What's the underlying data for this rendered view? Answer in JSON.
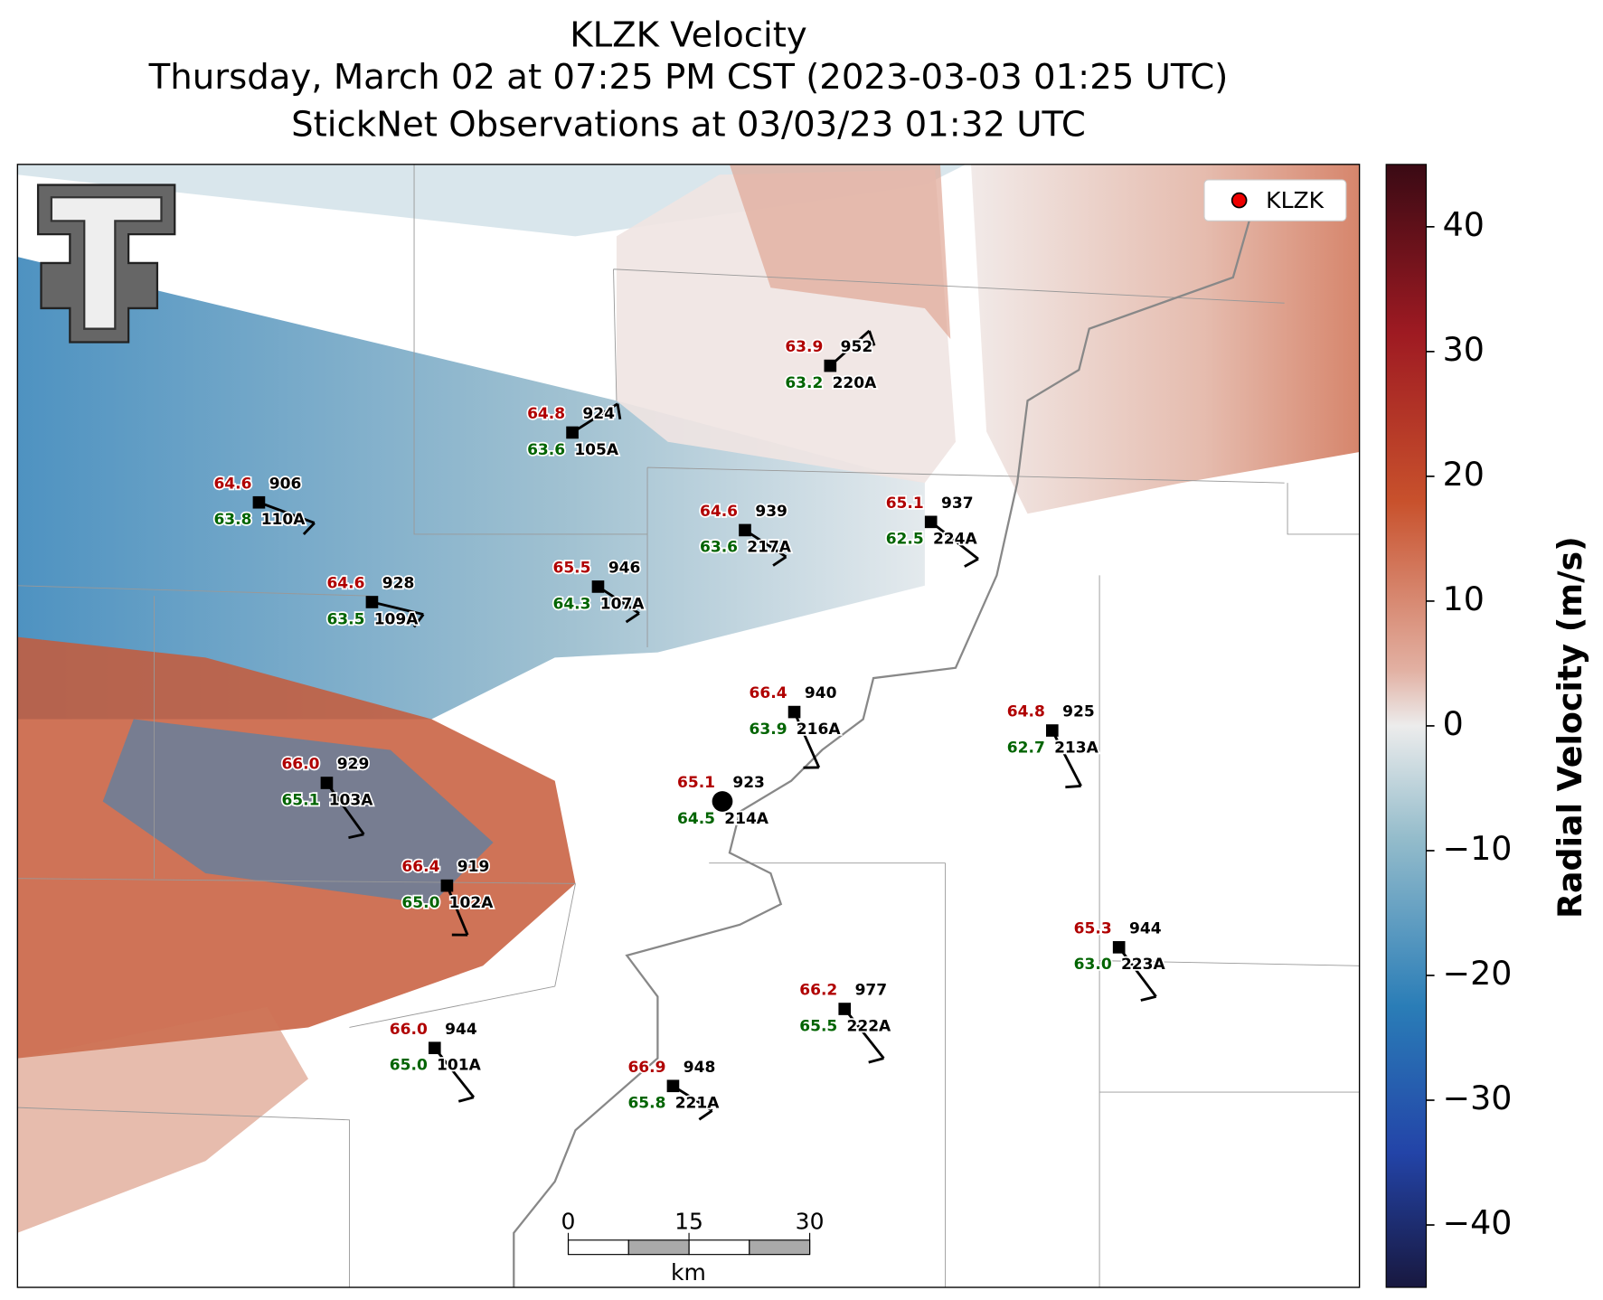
{
  "title": {
    "lines": [
      "KLZK Velocity",
      "Thursday, March 02 at 07:25 PM CST (2023-03-03 01:25 UTC)",
      "StickNet Observations at 03/03/23 01:32 UTC"
    ]
  },
  "legend": {
    "label": "KLZK"
  },
  "colorbar": {
    "label": "Radial Velocity (m/s)",
    "lim": [
      -45,
      45
    ],
    "ticks": [
      {
        "value": -40,
        "label": "−40"
      },
      {
        "value": -30,
        "label": "−30"
      },
      {
        "value": -20,
        "label": "−20"
      },
      {
        "value": -10,
        "label": "−10"
      },
      0,
      10,
      20,
      30,
      40
    ]
  },
  "scale_bar": {
    "ticks": [
      0,
      15,
      30
    ],
    "unit": "km"
  },
  "stations": [
    {
      "id": "220A",
      "temperature": "63.9",
      "dewpoint": "63.2",
      "pressure": "952"
    },
    {
      "id": "105A",
      "temperature": "64.8",
      "dewpoint": "63.6",
      "pressure": "924"
    },
    {
      "id": "110A",
      "temperature": "64.6",
      "dewpoint": "63.8",
      "pressure": "906"
    },
    {
      "id": "217A",
      "temperature": "64.6",
      "dewpoint": "63.6",
      "pressure": "939"
    },
    {
      "id": "224A",
      "temperature": "65.1",
      "dewpoint": "62.5",
      "pressure": "937"
    },
    {
      "id": "107A",
      "temperature": "65.5",
      "dewpoint": "64.3",
      "pressure": "946"
    },
    {
      "id": "109A",
      "temperature": "64.6",
      "dewpoint": "63.5",
      "pressure": "928"
    },
    {
      "id": "216A",
      "temperature": "66.4",
      "dewpoint": "63.9",
      "pressure": "940"
    },
    {
      "id": "213A",
      "temperature": "64.8",
      "dewpoint": "62.7",
      "pressure": "925"
    },
    {
      "id": "103A",
      "temperature": "66.0",
      "dewpoint": "65.1",
      "pressure": "929"
    },
    {
      "id": "214A",
      "temperature": "65.1",
      "dewpoint": "64.5",
      "pressure": "923"
    },
    {
      "id": "102A",
      "temperature": "66.4",
      "dewpoint": "65.0",
      "pressure": "919"
    },
    {
      "id": "223A",
      "temperature": "65.3",
      "dewpoint": "63.0",
      "pressure": "944"
    },
    {
      "id": "222A",
      "temperature": "66.2",
      "dewpoint": "65.5",
      "pressure": "977"
    },
    {
      "id": "101A",
      "temperature": "66.0",
      "dewpoint": "65.0",
      "pressure": "944"
    },
    {
      "id": "221A",
      "temperature": "66.9",
      "dewpoint": "65.8",
      "pressure": "948"
    }
  ]
}
